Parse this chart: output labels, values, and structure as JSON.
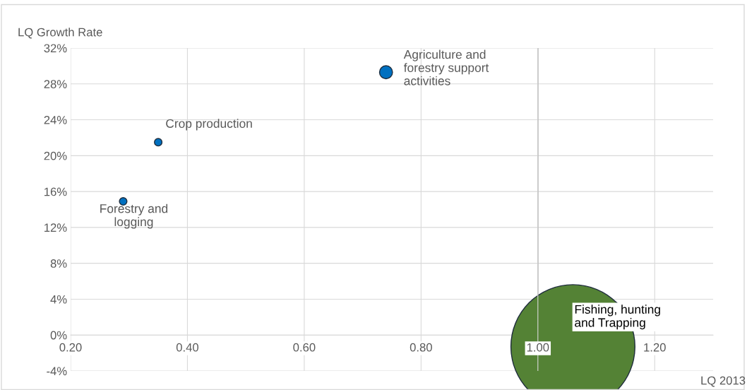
{
  "chart_data": {
    "type": "bubble",
    "xlabel": "LQ 2013",
    "ylabel": "LQ Growth Rate",
    "x": [
      0.74,
      0.35,
      0.29,
      1.06
    ],
    "values": [
      29.3,
      21.5,
      14.9,
      -1.3
    ],
    "sizes": [
      0.011,
      0.0037,
      0.0037,
      1
    ],
    "colors": [
      "#0070c0",
      "#0070c0",
      "#0070c0",
      "#548235"
    ],
    "xlim": [
      0.2,
      1.3
    ],
    "xticks": [
      {
        "value": 0.2,
        "label": "0.20"
      },
      {
        "value": 0.4,
        "label": "0.40"
      },
      {
        "value": 0.6,
        "label": "0.60"
      },
      {
        "value": 0.8,
        "label": "0.80"
      },
      {
        "value": 1.0,
        "label": "1.00"
      },
      {
        "value": 1.2,
        "label": "1.20"
      }
    ],
    "ylim": [
      -4,
      32
    ],
    "yticks": [
      {
        "value": -4,
        "label": "-4%"
      },
      {
        "value": 0,
        "label": "0%"
      },
      {
        "value": 4,
        "label": "4%"
      },
      {
        "value": 8,
        "label": "8%"
      },
      {
        "value": 12,
        "label": "12%"
      },
      {
        "value": 16,
        "label": "16%"
      },
      {
        "value": 20,
        "label": "20%"
      },
      {
        "value": 24,
        "label": "24%"
      },
      {
        "value": 28,
        "label": "28%"
      },
      {
        "value": 32,
        "label": "32%"
      }
    ],
    "grid": true,
    "ref_lines": [
      {
        "axis": "x",
        "value": 1.0,
        "color": "#a6a6a6"
      }
    ],
    "annotations": [
      {
        "text": "Agriculture and\nforestry support\nactivities",
        "x": 0.74,
        "y": 29.3
      },
      {
        "text": "Crop production",
        "x": 0.35,
        "y": 21.5
      },
      {
        "text": "Forestry and\nlogging",
        "x": 0.29,
        "y": 14.9
      },
      {
        "text": "Fishing, hunting\nand Trapping",
        "x": 1.06,
        "y": -1.3
      }
    ]
  }
}
